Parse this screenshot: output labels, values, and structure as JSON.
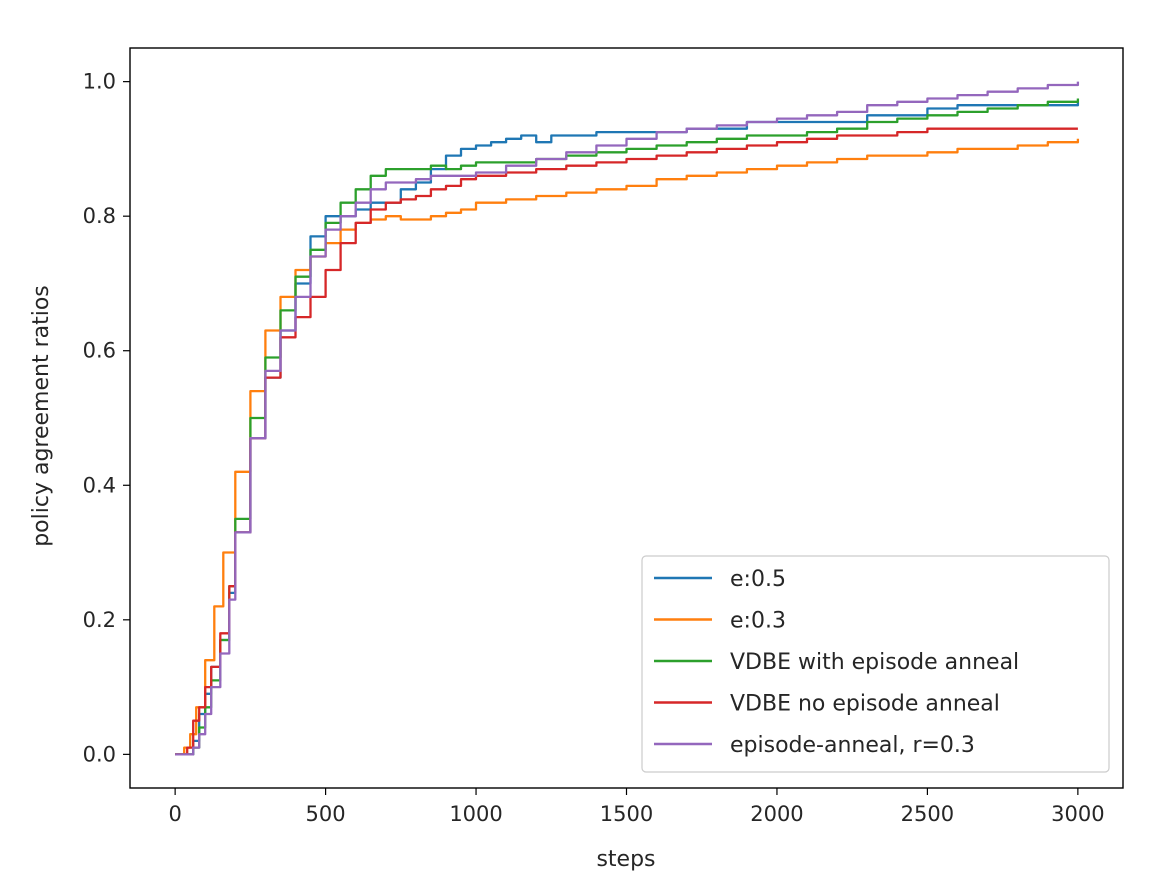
{
  "chart_data": {
    "type": "line",
    "title": "",
    "xlabel": "steps",
    "ylabel": "policy agreement ratios",
    "xlim": [
      -150,
      3150
    ],
    "ylim": [
      -0.05,
      1.05
    ],
    "xticks": [
      0,
      500,
      1000,
      1500,
      2000,
      2500,
      3000
    ],
    "yticks": [
      0.0,
      0.2,
      0.4,
      0.6,
      0.8,
      1.0
    ],
    "xtick_labels": [
      "0",
      "500",
      "1000",
      "1500",
      "2000",
      "2500",
      "3000"
    ],
    "ytick_labels": [
      "0.0",
      "0.2",
      "0.4",
      "0.6",
      "0.8",
      "1.0"
    ],
    "grid": false,
    "legend_position": "lower-right",
    "series": [
      {
        "name": "e:0.5",
        "color": "#1f77b4",
        "x": [
          0,
          40,
          60,
          80,
          100,
          120,
          150,
          180,
          200,
          250,
          300,
          350,
          400,
          450,
          500,
          550,
          600,
          650,
          700,
          750,
          800,
          850,
          900,
          950,
          1000,
          1050,
          1100,
          1150,
          1200,
          1250,
          1300,
          1400,
          1500,
          1600,
          1700,
          1800,
          1900,
          2000,
          2100,
          2200,
          2300,
          2400,
          2500,
          2600,
          2700,
          2800,
          2900,
          3000
        ],
        "y": [
          0.0,
          0.0,
          0.02,
          0.06,
          0.09,
          0.13,
          0.17,
          0.24,
          0.33,
          0.47,
          0.56,
          0.63,
          0.7,
          0.77,
          0.8,
          0.8,
          0.81,
          0.82,
          0.82,
          0.84,
          0.85,
          0.87,
          0.89,
          0.9,
          0.905,
          0.91,
          0.915,
          0.92,
          0.91,
          0.92,
          0.92,
          0.925,
          0.925,
          0.925,
          0.93,
          0.93,
          0.94,
          0.94,
          0.94,
          0.94,
          0.95,
          0.95,
          0.96,
          0.965,
          0.965,
          0.965,
          0.965,
          0.97
        ]
      },
      {
        "name": "e:0.3",
        "color": "#ff7f0e",
        "x": [
          0,
          30,
          50,
          70,
          100,
          130,
          160,
          200,
          250,
          300,
          350,
          400,
          450,
          500,
          550,
          600,
          650,
          700,
          750,
          800,
          850,
          900,
          950,
          1000,
          1100,
          1200,
          1300,
          1400,
          1500,
          1600,
          1700,
          1800,
          1900,
          2000,
          2100,
          2200,
          2300,
          2400,
          2500,
          2600,
          2700,
          2800,
          2900,
          3000
        ],
        "y": [
          0.0,
          0.01,
          0.03,
          0.07,
          0.14,
          0.22,
          0.3,
          0.42,
          0.54,
          0.63,
          0.68,
          0.72,
          0.74,
          0.76,
          0.78,
          0.79,
          0.795,
          0.8,
          0.795,
          0.795,
          0.8,
          0.805,
          0.81,
          0.82,
          0.825,
          0.83,
          0.835,
          0.84,
          0.845,
          0.855,
          0.86,
          0.865,
          0.87,
          0.875,
          0.88,
          0.885,
          0.89,
          0.89,
          0.895,
          0.9,
          0.9,
          0.905,
          0.91,
          0.915
        ]
      },
      {
        "name": "VDBE with episode anneal",
        "color": "#2ca02c",
        "x": [
          0,
          40,
          60,
          80,
          100,
          120,
          150,
          180,
          200,
          250,
          300,
          350,
          400,
          450,
          500,
          550,
          600,
          650,
          700,
          750,
          800,
          850,
          900,
          950,
          1000,
          1100,
          1200,
          1300,
          1400,
          1500,
          1600,
          1700,
          1800,
          1900,
          2000,
          2100,
          2200,
          2300,
          2400,
          2500,
          2600,
          2700,
          2800,
          2900,
          3000
        ],
        "y": [
          0.0,
          0.0,
          0.01,
          0.04,
          0.07,
          0.11,
          0.17,
          0.25,
          0.35,
          0.5,
          0.59,
          0.66,
          0.71,
          0.75,
          0.79,
          0.82,
          0.84,
          0.86,
          0.87,
          0.87,
          0.87,
          0.875,
          0.87,
          0.875,
          0.88,
          0.88,
          0.885,
          0.89,
          0.895,
          0.9,
          0.905,
          0.91,
          0.915,
          0.92,
          0.92,
          0.925,
          0.93,
          0.94,
          0.945,
          0.95,
          0.955,
          0.96,
          0.965,
          0.97,
          0.975
        ]
      },
      {
        "name": "VDBE no episode anneal",
        "color": "#d62728",
        "x": [
          0,
          40,
          60,
          80,
          100,
          120,
          150,
          180,
          200,
          250,
          300,
          350,
          400,
          450,
          500,
          550,
          600,
          650,
          700,
          750,
          800,
          850,
          900,
          950,
          1000,
          1100,
          1200,
          1300,
          1400,
          1500,
          1600,
          1700,
          1800,
          1900,
          2000,
          2100,
          2200,
          2300,
          2400,
          2500,
          2600,
          2700,
          2800,
          2900,
          3000
        ],
        "y": [
          0.0,
          0.01,
          0.05,
          0.07,
          0.1,
          0.13,
          0.18,
          0.25,
          0.33,
          0.47,
          0.56,
          0.62,
          0.65,
          0.68,
          0.72,
          0.76,
          0.79,
          0.81,
          0.82,
          0.825,
          0.83,
          0.84,
          0.845,
          0.855,
          0.86,
          0.865,
          0.87,
          0.875,
          0.88,
          0.885,
          0.89,
          0.895,
          0.9,
          0.905,
          0.91,
          0.915,
          0.92,
          0.92,
          0.925,
          0.93,
          0.93,
          0.93,
          0.93,
          0.93,
          0.93
        ]
      },
      {
        "name": "episode-anneal, r=0.3",
        "color": "#9467bd",
        "x": [
          0,
          40,
          60,
          80,
          100,
          120,
          150,
          180,
          200,
          250,
          300,
          350,
          400,
          450,
          500,
          550,
          600,
          650,
          700,
          750,
          800,
          850,
          900,
          950,
          1000,
          1100,
          1200,
          1300,
          1400,
          1500,
          1600,
          1700,
          1800,
          1900,
          2000,
          2100,
          2200,
          2300,
          2400,
          2500,
          2600,
          2700,
          2800,
          2900,
          3000
        ],
        "y": [
          0.0,
          0.0,
          0.01,
          0.03,
          0.06,
          0.1,
          0.15,
          0.23,
          0.33,
          0.47,
          0.57,
          0.63,
          0.68,
          0.74,
          0.78,
          0.8,
          0.82,
          0.84,
          0.85,
          0.85,
          0.855,
          0.86,
          0.86,
          0.86,
          0.865,
          0.875,
          0.885,
          0.895,
          0.905,
          0.915,
          0.925,
          0.93,
          0.935,
          0.94,
          0.945,
          0.95,
          0.955,
          0.965,
          0.97,
          0.975,
          0.98,
          0.985,
          0.99,
          0.995,
          1.0
        ]
      }
    ]
  }
}
